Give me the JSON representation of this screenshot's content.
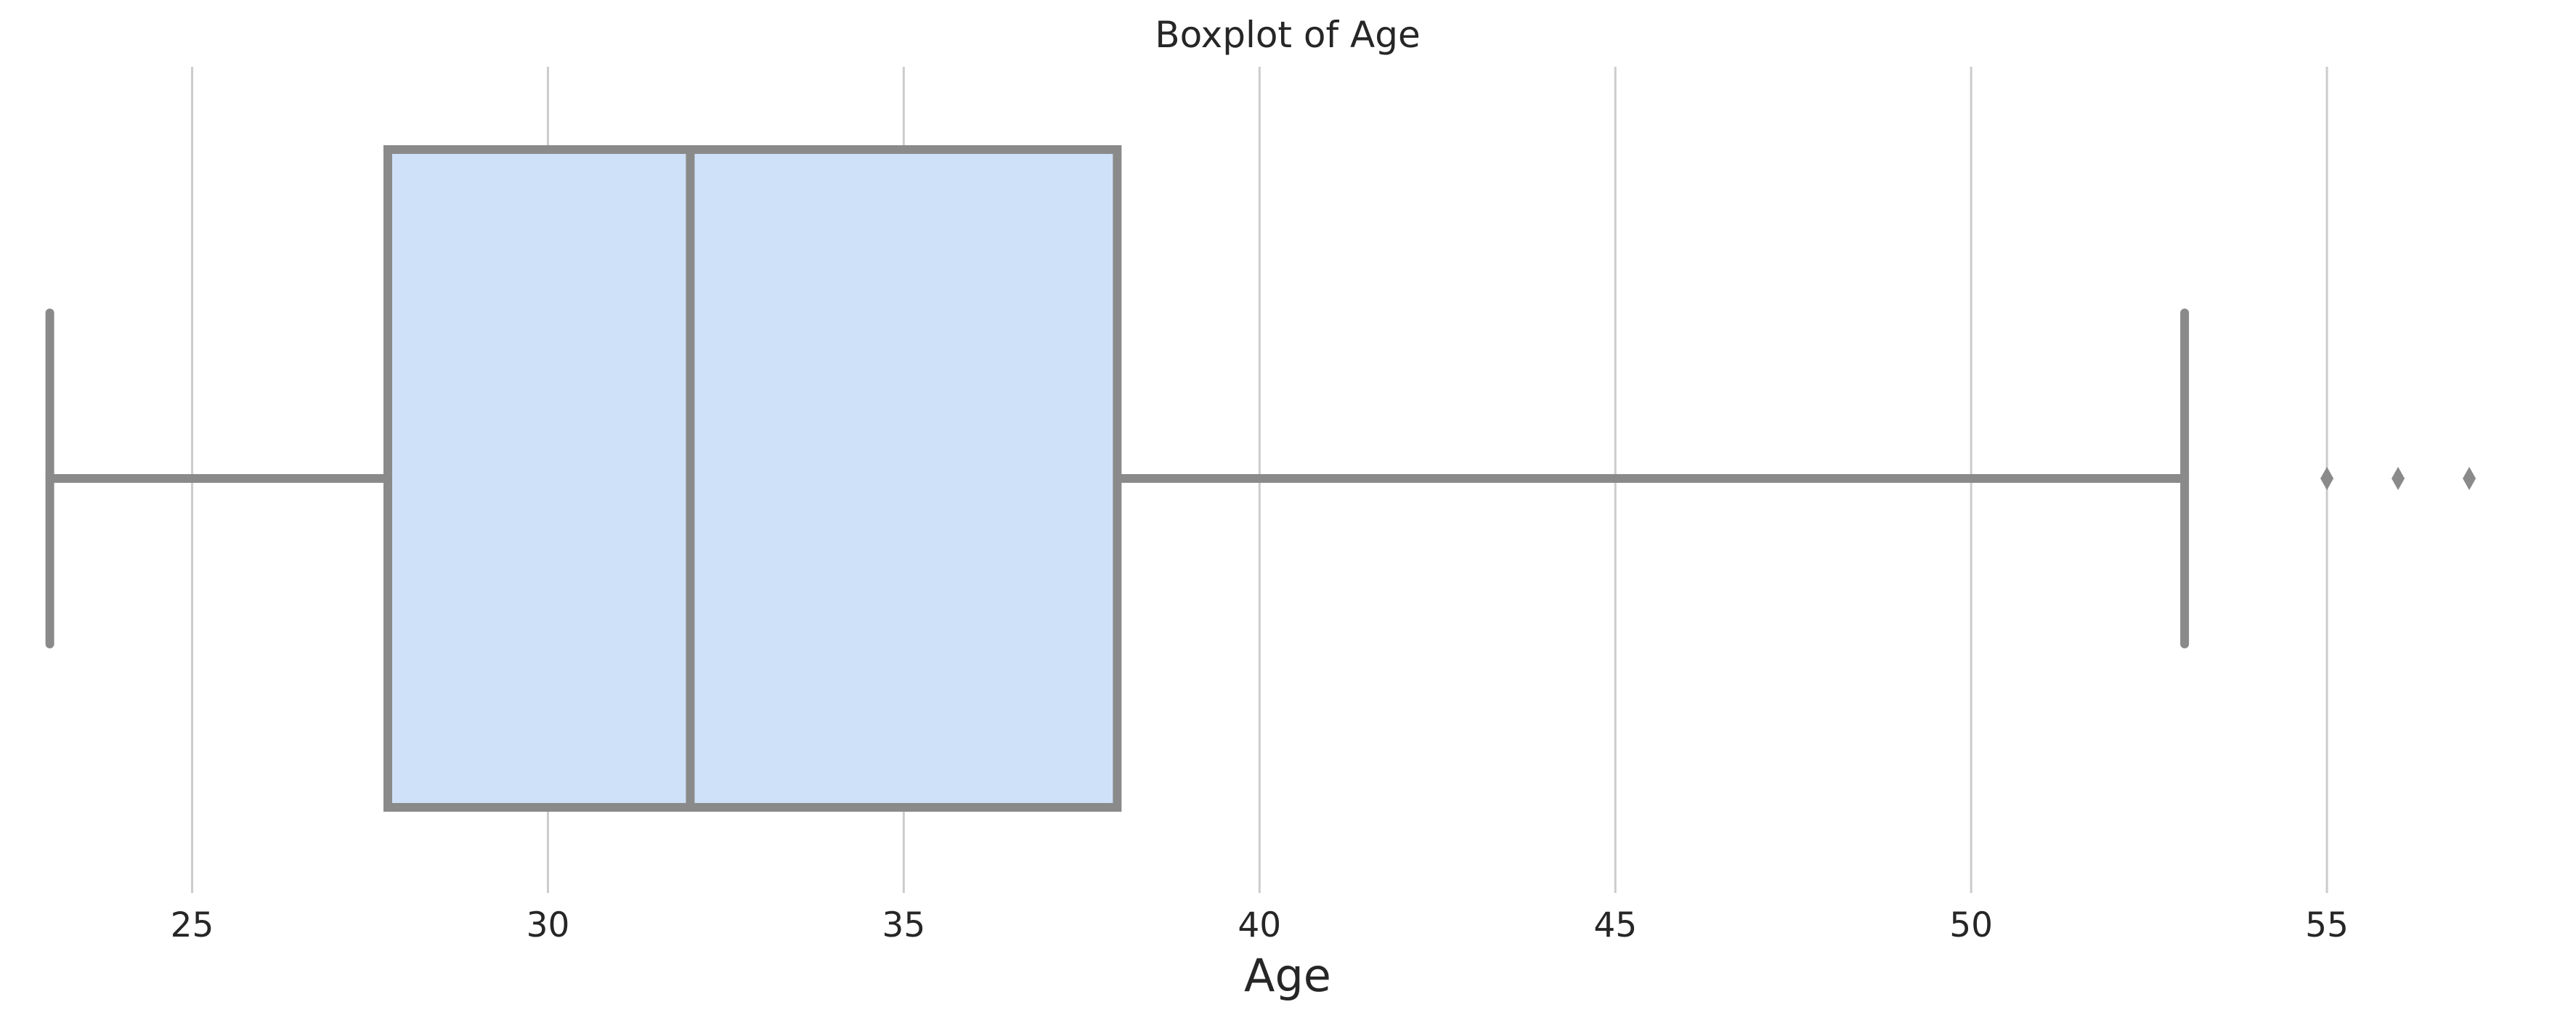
{
  "chart_data": {
    "type": "boxplot",
    "title": "Boxplot of Age",
    "xlabel": "Age",
    "ylabel": "",
    "xlim": [
      22.3,
      58.5
    ],
    "xticks": [
      25,
      30,
      35,
      40,
      45,
      50,
      55
    ],
    "xtick_labels": [
      "25",
      "30",
      "35",
      "40",
      "45",
      "50",
      "55"
    ],
    "grid": "vertical",
    "orientation": "horizontal",
    "box": {
      "whisker_low": 23,
      "q1": 27.75,
      "median": 32,
      "q3": 38,
      "whisker_high": 53,
      "outliers": [
        55,
        56,
        57
      ]
    },
    "colors": {
      "box_fill": "#cfe1f8",
      "line": "#8a8a8a",
      "grid": "#cccccc",
      "text": "#262626"
    }
  }
}
